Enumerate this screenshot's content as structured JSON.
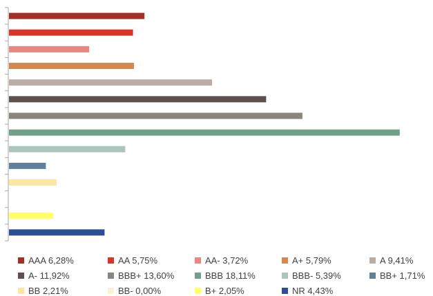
{
  "chart_data": {
    "type": "bar",
    "orientation": "horizontal",
    "categories": [
      "AAA",
      "AA",
      "AA-",
      "A+",
      "A",
      "A-",
      "BBB+",
      "BBB",
      "BBB-",
      "BB+",
      "BB",
      "BB-",
      "B+",
      "NR"
    ],
    "values": [
      6.28,
      5.75,
      3.72,
      5.79,
      9.41,
      11.92,
      13.6,
      18.11,
      5.39,
      1.71,
      2.21,
      0.0,
      2.05,
      4.43
    ],
    "colors": [
      "#A33026",
      "#D9332A",
      "#EB877F",
      "#D4874E",
      "#BAADA6",
      "#5E504C",
      "#8C857D",
      "#739E8C",
      "#ABC5BC",
      "#627F99",
      "#FCE6A1",
      "#FDF1D6",
      "#FFFF66",
      "#2E4E94"
    ],
    "legend_labels": [
      "AAA 6,28%",
      "AA 5,75%",
      "AA- 3,72%",
      "A+ 5,79%",
      "A 9,41%",
      "A- 11,92%",
      "BBB+ 13,60%",
      "BBB 18,11%",
      "BBB- 5,39%",
      "BB+ 1,71%",
      "BB 2,21%",
      "BB- 0,00%",
      "B+ 2,05%",
      "NR 4,43%"
    ],
    "title": "",
    "xlabel": "",
    "ylabel": "",
    "xlim": [
      0,
      18.5
    ],
    "grid": false,
    "legend_position": "bottom"
  }
}
